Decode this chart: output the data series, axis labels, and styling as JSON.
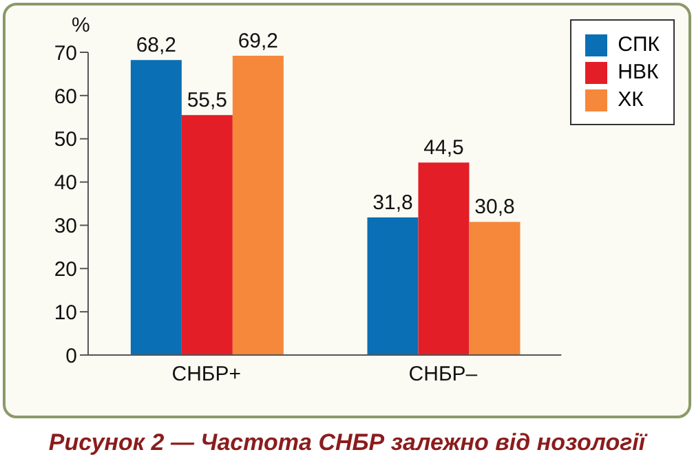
{
  "chart_data": {
    "type": "bar",
    "title": "Рисунок 2 — Частота СНБР залежно від нозології",
    "ylabel": "%",
    "categories": [
      "СНБР+",
      "СНБР–"
    ],
    "series": [
      {
        "name": "СПК",
        "color": "#0a6fb5",
        "values": [
          68.2,
          31.8
        ],
        "value_labels": [
          "68,2",
          "31,8"
        ]
      },
      {
        "name": "НВК",
        "color": "#e31e26",
        "values": [
          55.5,
          44.5
        ],
        "value_labels": [
          "55,5",
          "44,5"
        ]
      },
      {
        "name": "ХК",
        "color": "#f5883a",
        "values": [
          69.2,
          30.8
        ],
        "value_labels": [
          "69,2",
          "30,8"
        ]
      }
    ],
    "ylim": [
      0,
      70
    ],
    "yticks": [
      0,
      10,
      20,
      30,
      40,
      50,
      60,
      70
    ],
    "legend": "top right"
  }
}
